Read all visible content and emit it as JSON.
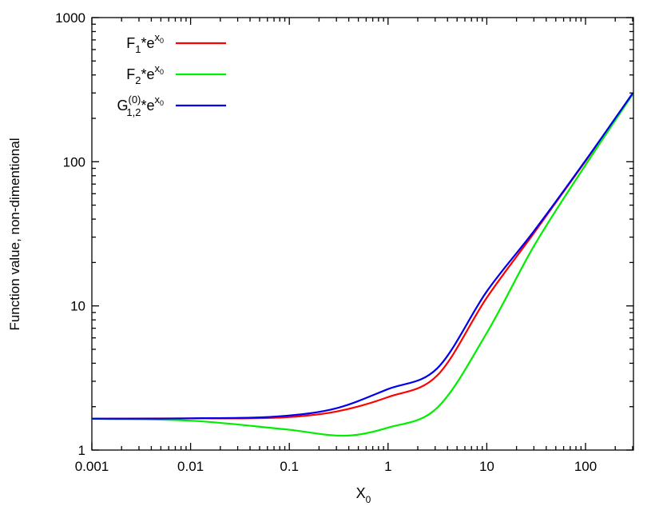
{
  "chart_data": {
    "type": "line",
    "xlabel": "X",
    "xlabel_sub": "0",
    "ylabel": "Function value, non-dimentional",
    "x_scale": "log",
    "y_scale": "log",
    "xlim": [
      0.001,
      300
    ],
    "ylim": [
      1,
      1000
    ],
    "x_ticks": [
      "0.001",
      "0.01",
      "0.1",
      "1",
      "10",
      "100"
    ],
    "y_ticks": [
      "1",
      "10",
      "100",
      "1000"
    ],
    "grid": false,
    "legend_position": "top-left",
    "series": [
      {
        "name": "F1*e^x0",
        "legend": {
          "base": "F",
          "sub": "1",
          "sup_pre": "",
          "mid": "*e",
          "exp": "x",
          "exp_sub": "0"
        },
        "color": "#ff0000",
        "x": [
          0.001,
          0.01,
          0.094,
          0.3,
          1,
          3.16,
          10,
          30,
          100,
          300
        ],
        "y": [
          1.65,
          1.66,
          1.69,
          1.85,
          2.33,
          3.3,
          11.4,
          32,
          101,
          297
        ]
      },
      {
        "name": "F2*e^x0",
        "legend": {
          "base": "F",
          "sub": "2",
          "sup_pre": "",
          "mid": "*e",
          "exp": "x",
          "exp_sub": "0"
        },
        "color": "#00ee00",
        "x": [
          0.001,
          0.01,
          0.094,
          0.4,
          1,
          3.16,
          10,
          30,
          100,
          300
        ],
        "y": [
          1.65,
          1.6,
          1.39,
          1.26,
          1.43,
          1.97,
          6.5,
          26,
          95,
          293
        ]
      },
      {
        "name": "G1,2(0)*e^x0",
        "legend": {
          "base": "G",
          "sub": "1,2",
          "sup_pre": "(0)",
          "mid": "*e",
          "exp": "x",
          "exp_sub": "0"
        },
        "color": "#0000ee",
        "x": [
          0.001,
          0.01,
          0.094,
          0.3,
          1,
          3.16,
          10,
          30,
          100,
          300
        ],
        "y": [
          1.65,
          1.66,
          1.73,
          1.95,
          2.65,
          3.7,
          12.6,
          33,
          102,
          298
        ]
      }
    ]
  }
}
